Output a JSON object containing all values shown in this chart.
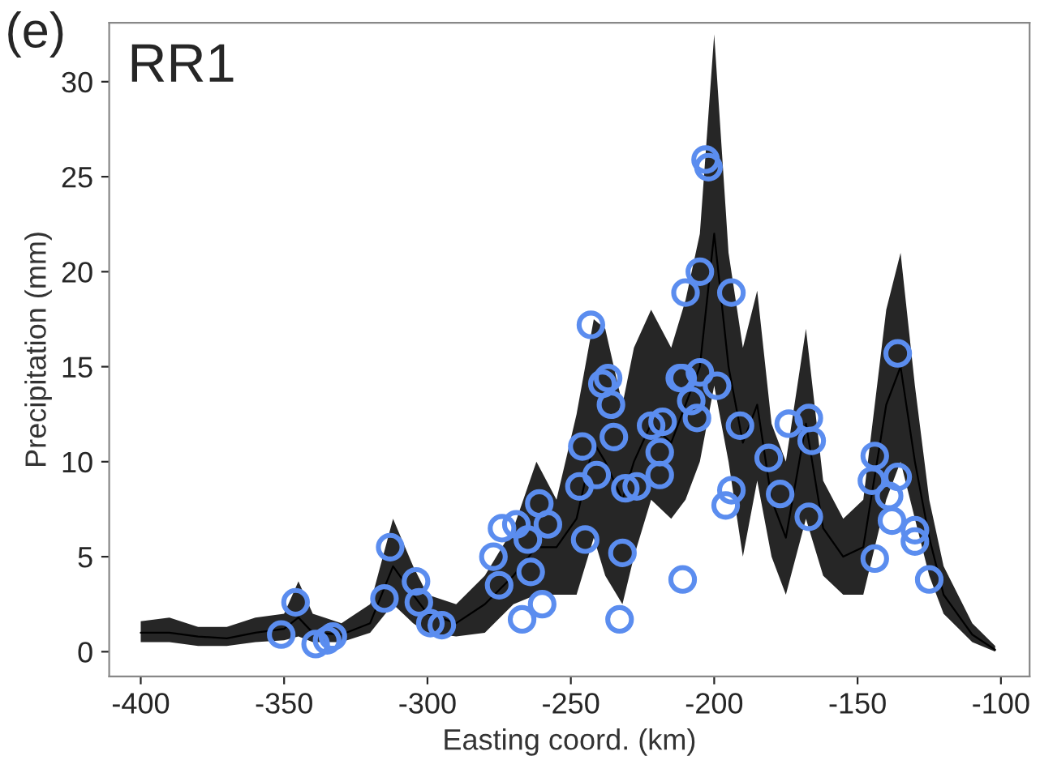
{
  "chart_data": {
    "type": "line",
    "xlabel": "Easting coord. (km)",
    "ylabel": "Precipitation (mm)",
    "annotations": [
      "(e)",
      "RR1"
    ],
    "xlim": [
      -411,
      -90
    ],
    "ylim": [
      -1.3,
      33.1
    ],
    "xticks": [
      -400,
      -350,
      -300,
      -250,
      -200,
      -150,
      -100
    ],
    "yticks": [
      0,
      5,
      10,
      15,
      20,
      25,
      30
    ],
    "grid": false,
    "legend": false,
    "series": [
      {
        "color": "#000000",
        "marker": "none",
        "x": [
          -400,
          -390,
          -380,
          -370,
          -360,
          -350,
          -345,
          -340,
          -330,
          -320,
          -312,
          -305,
          -300,
          -290,
          -280,
          -270,
          -262,
          -255,
          -248,
          -242,
          -238,
          -232,
          -228,
          -222,
          -215,
          -210,
          -205,
          -200,
          -195,
          -190,
          -185,
          -180,
          -175,
          -168,
          -162,
          -155,
          -148,
          -140,
          -135,
          -130,
          -125,
          -120,
          -110,
          -102
        ],
        "values": [
          1.0,
          1.0,
          0.8,
          0.7,
          1.0,
          1.2,
          1.8,
          1.0,
          0.9,
          1.5,
          4.5,
          3.0,
          2.0,
          1.5,
          2.5,
          4.0,
          5.5,
          5.5,
          7.0,
          11.0,
          10.0,
          8.0,
          10.0,
          12.0,
          11.0,
          13.0,
          15.0,
          22.0,
          15.0,
          11.0,
          13.0,
          8.0,
          6.0,
          12.0,
          6.5,
          5.0,
          5.5,
          13.0,
          15.0,
          10.0,
          6.0,
          3.0,
          0.9,
          0.1
        ],
        "lower": [
          0.5,
          0.5,
          0.3,
          0.3,
          0.5,
          0.6,
          0.8,
          0.5,
          0.5,
          1.0,
          2.5,
          1.5,
          1.0,
          0.8,
          1.0,
          2.5,
          3.0,
          3.0,
          3.0,
          6.0,
          4.0,
          2.5,
          5.0,
          8.0,
          7.0,
          8.0,
          10.0,
          14.0,
          10.0,
          5.0,
          9.0,
          5.0,
          3.0,
          7.0,
          4.0,
          3.0,
          3.0,
          8.0,
          10.0,
          7.0,
          4.0,
          2.0,
          0.5,
          0.0
        ],
        "upper": [
          1.6,
          1.8,
          1.3,
          1.3,
          1.8,
          2.0,
          3.7,
          2.0,
          1.5,
          2.5,
          7.0,
          4.5,
          3.0,
          2.5,
          4.0,
          6.5,
          10.0,
          8.0,
          12.5,
          17.5,
          17.0,
          13.0,
          16.0,
          18.0,
          16.0,
          18.5,
          22.0,
          32.5,
          21.0,
          16.0,
          19.0,
          12.0,
          10.0,
          17.0,
          9.0,
          7.0,
          8.0,
          18.0,
          21.0,
          14.0,
          8.0,
          4.5,
          1.5,
          0.3
        ]
      },
      {
        "type": "scatter",
        "color": "#5b8def",
        "marker": "circle",
        "x": [
          -351,
          -346,
          -339,
          -335,
          -333,
          -315,
          -313,
          -304,
          -303,
          -299,
          -295,
          -277,
          -275,
          -274,
          -267,
          -265,
          -264,
          -261,
          -260,
          -258,
          -269,
          -247,
          -243,
          -245,
          -246,
          -239,
          -237,
          -236,
          -235,
          -241,
          -233,
          -232,
          -231,
          -227,
          -222,
          -218,
          -219,
          -219,
          -212,
          -203,
          -202,
          -205,
          -210,
          -194,
          -211,
          -205,
          -199,
          -208,
          -206,
          -191,
          -181,
          -177,
          -196,
          -194,
          -174,
          -167,
          -166,
          -167,
          -136,
          -144,
          -145,
          -136,
          -139,
          -138,
          -130,
          -130,
          -125,
          -144,
          -211
        ],
        "values": [
          0.9,
          2.6,
          0.4,
          0.6,
          0.8,
          2.8,
          5.5,
          3.7,
          2.6,
          1.5,
          1.4,
          5.0,
          3.5,
          6.5,
          1.7,
          5.9,
          4.2,
          7.8,
          2.5,
          6.7,
          6.7,
          8.7,
          17.2,
          5.9,
          10.8,
          14.1,
          14.4,
          13.0,
          11.3,
          9.3,
          1.7,
          5.2,
          8.6,
          8.7,
          11.9,
          12.1,
          10.5,
          9.3,
          14.4,
          25.9,
          25.5,
          20.0,
          18.9,
          18.9,
          14.4,
          14.7,
          14.0,
          13.2,
          12.3,
          11.9,
          10.2,
          8.3,
          7.7,
          8.5,
          12.0,
          12.3,
          11.1,
          7.1,
          15.7,
          10.3,
          9.0,
          9.2,
          8.2,
          6.9,
          6.4,
          5.8,
          3.8,
          4.9,
          3.8
        ]
      }
    ]
  }
}
